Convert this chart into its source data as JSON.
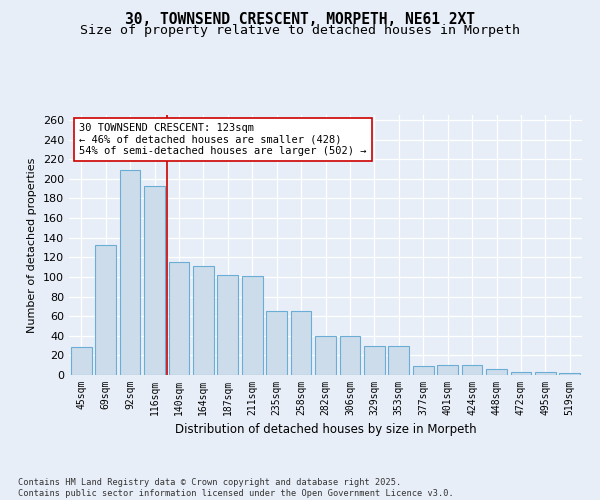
{
  "title1": "30, TOWNSEND CRESCENT, MORPETH, NE61 2XT",
  "title2": "Size of property relative to detached houses in Morpeth",
  "xlabel": "Distribution of detached houses by size in Morpeth",
  "ylabel": "Number of detached properties",
  "categories": [
    "45sqm",
    "69sqm",
    "92sqm",
    "116sqm",
    "140sqm",
    "164sqm",
    "187sqm",
    "211sqm",
    "235sqm",
    "258sqm",
    "282sqm",
    "306sqm",
    "329sqm",
    "353sqm",
    "377sqm",
    "401sqm",
    "424sqm",
    "448sqm",
    "472sqm",
    "495sqm",
    "519sqm"
  ],
  "values": [
    29,
    132,
    209,
    193,
    115,
    111,
    102,
    101,
    65,
    65,
    40,
    40,
    30,
    30,
    9,
    10,
    10,
    6,
    3,
    3,
    2
  ],
  "bar_color": "#ccdcea",
  "bar_edge_color": "#6aaed6",
  "vline_x": 3.5,
  "vline_color": "#cc0000",
  "annotation_text": "30 TOWNSEND CRESCENT: 123sqm\n← 46% of detached houses are smaller (428)\n54% of semi-detached houses are larger (502) →",
  "annotation_box_color": "white",
  "annotation_box_edge_color": "#cc0000",
  "footnote": "Contains HM Land Registry data © Crown copyright and database right 2025.\nContains public sector information licensed under the Open Government Licence v3.0.",
  "ylim": [
    0,
    265
  ],
  "yticks": [
    0,
    20,
    40,
    60,
    80,
    100,
    120,
    140,
    160,
    180,
    200,
    220,
    240,
    260
  ],
  "bg_color": "#e8eef8",
  "title_fontsize": 10.5,
  "subtitle_fontsize": 9.5
}
